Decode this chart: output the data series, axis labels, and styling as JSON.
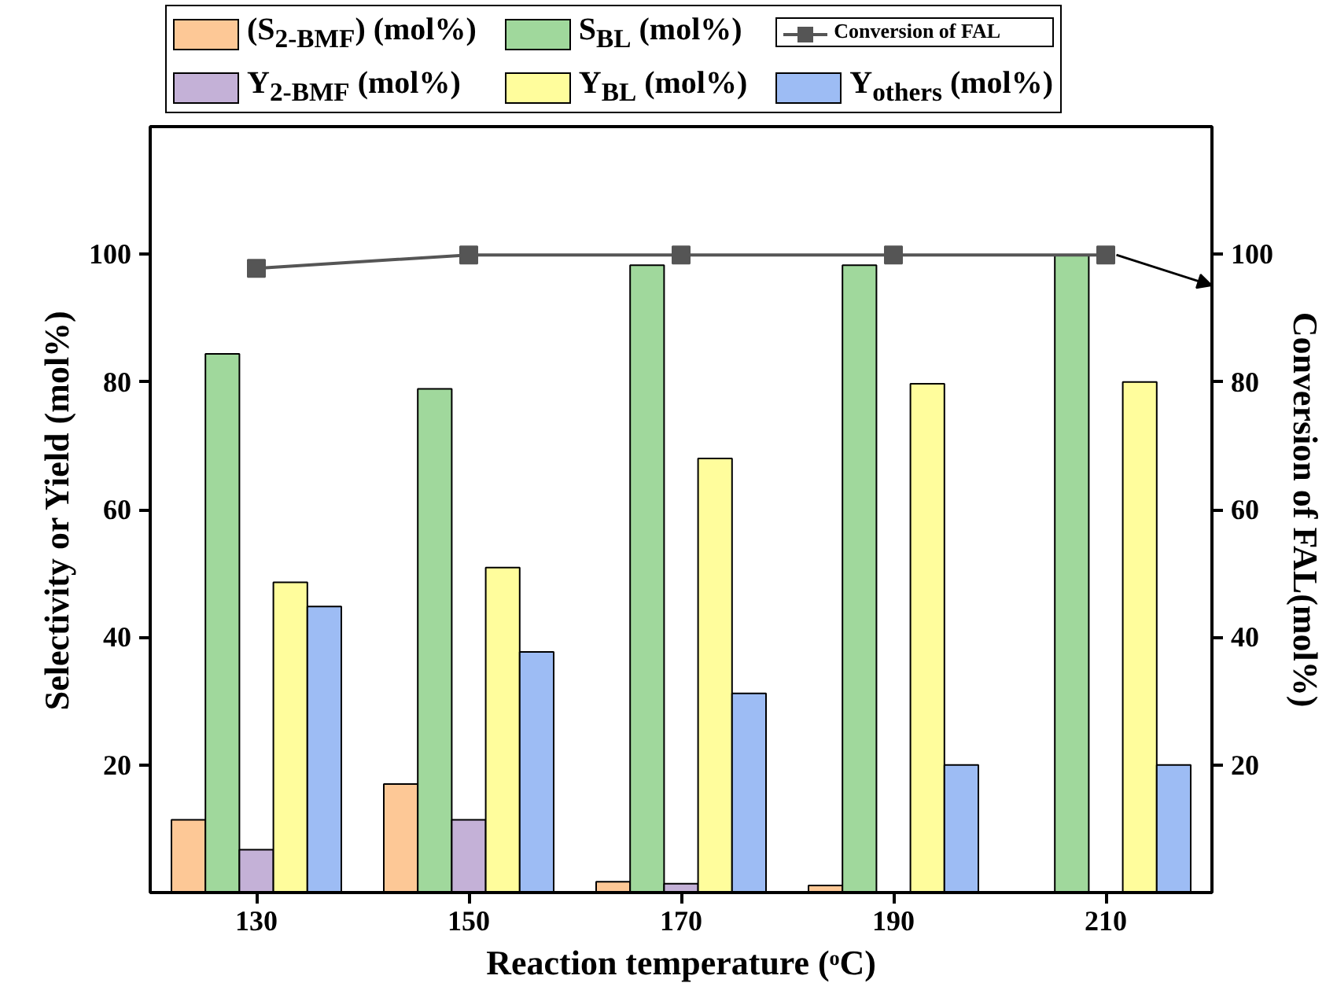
{
  "chart_data": {
    "type": "bar",
    "xlabel": "Reaction temperature (ᵒC)",
    "ylabel": "Selectivity or Yield (mol%)",
    "y2label": "Conversion of FAL(mol%)",
    "x": [
      130,
      150,
      170,
      190,
      210
    ],
    "series": [
      {
        "name": "(S$_{2-BMF}$) (mol%)",
        "color": "#fdc896",
        "values": [
          11.4,
          17.0,
          1.7,
          1.1,
          null
        ]
      },
      {
        "name": "S$_{BL}$ (mol%)",
        "color": "#a0d89c",
        "values": [
          84.4,
          78.9,
          98.3,
          98.3,
          99.8
        ]
      },
      {
        "name": "Conversion of FAL",
        "type": "line",
        "axis": "y2",
        "color": "#555555",
        "marker": "square",
        "values": [
          97.8,
          99.9,
          99.9,
          99.9,
          99.9
        ]
      },
      {
        "name": "Y$_{2-BMF}$ (mol%)",
        "color": "#c4b1d7",
        "values": [
          6.7,
          11.4,
          1.4,
          null,
          null
        ]
      },
      {
        "name": "Y$_{BL}$ (mol%)",
        "color": "#fffd9c",
        "values": [
          48.6,
          50.9,
          68.0,
          79.7,
          80.0
        ]
      },
      {
        "name": "Y$_{others}$ (mol%)",
        "color": "#9dbcf4",
        "values": [
          44.8,
          37.7,
          31.2,
          20.0,
          20.0
        ]
      }
    ],
    "xlim": [
      120,
      220
    ],
    "xticks": [
      130,
      150,
      170,
      190,
      210
    ],
    "ylim": [
      0,
      120
    ],
    "yticks": [
      20,
      40,
      60,
      80,
      100
    ],
    "y2lim": [
      0,
      120
    ],
    "y2ticks": [
      20,
      40,
      60,
      80,
      100
    ],
    "grid": false,
    "legend": "top"
  }
}
